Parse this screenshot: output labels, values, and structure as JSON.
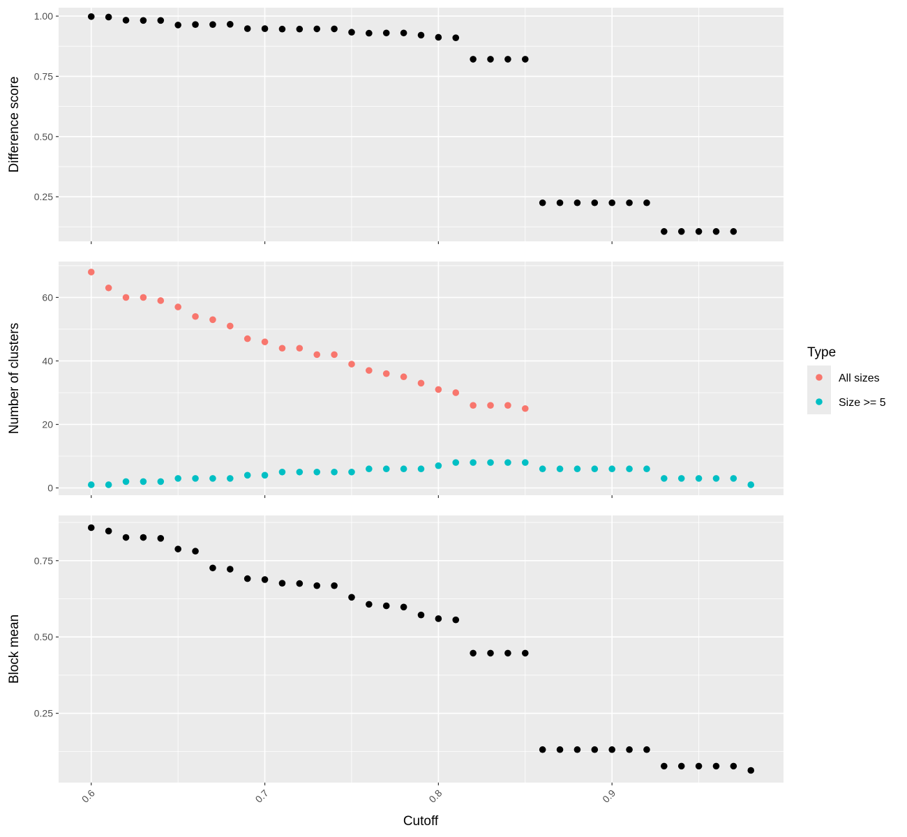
{
  "chart_data": [
    {
      "type": "scatter",
      "ylabel": "Difference score",
      "yticks": [
        0.25,
        0.5,
        0.75,
        1.0
      ],
      "ytick_labels": [
        "0.25",
        "0.50",
        "0.75",
        "1.00"
      ],
      "ylim": [
        0.065,
        1.035
      ],
      "series": [
        {
          "color": "#000000",
          "x": [
            0.6,
            0.61,
            0.62,
            0.63,
            0.64,
            0.65,
            0.66,
            0.67,
            0.68,
            0.69,
            0.7,
            0.71,
            0.72,
            0.73,
            0.74,
            0.75,
            0.76,
            0.77,
            0.78,
            0.79,
            0.8,
            0.81,
            0.82,
            0.83,
            0.84,
            0.85,
            0.86,
            0.87,
            0.88,
            0.89,
            0.9,
            0.91,
            0.92,
            0.93,
            0.94,
            0.95,
            0.96,
            0.97
          ],
          "y": [
            0.998,
            0.996,
            0.983,
            0.982,
            0.982,
            0.963,
            0.965,
            0.965,
            0.966,
            0.948,
            0.948,
            0.946,
            0.946,
            0.947,
            0.947,
            0.933,
            0.929,
            0.93,
            0.93,
            0.921,
            0.912,
            0.91,
            0.821,
            0.821,
            0.821,
            0.821,
            0.225,
            0.225,
            0.225,
            0.225,
            0.225,
            0.225,
            0.225,
            0.106,
            0.106,
            0.106,
            0.106,
            0.106
          ]
        }
      ]
    },
    {
      "type": "scatter",
      "ylabel": "Number of clusters",
      "yticks": [
        0,
        20,
        40,
        60
      ],
      "ytick_labels": [
        "0",
        "20",
        "40",
        "60"
      ],
      "ylim": [
        -2.3,
        71.3
      ],
      "legend": {
        "title": "Type",
        "position": "right"
      },
      "series": [
        {
          "name": "All sizes",
          "color": "#F8766D",
          "x": [
            0.6,
            0.61,
            0.62,
            0.63,
            0.64,
            0.65,
            0.66,
            0.67,
            0.68,
            0.69,
            0.7,
            0.71,
            0.72,
            0.73,
            0.74,
            0.75,
            0.76,
            0.77,
            0.78,
            0.79,
            0.8,
            0.81,
            0.82,
            0.83,
            0.84,
            0.85
          ],
          "y": [
            68,
            63,
            60,
            60,
            59,
            57,
            54,
            53,
            51,
            47,
            46,
            44,
            44,
            42,
            42,
            39,
            37,
            36,
            35,
            33,
            31,
            30,
            26,
            26,
            26,
            25
          ]
        },
        {
          "name": "Size >= 5",
          "color": "#00BFC4",
          "x": [
            0.6,
            0.61,
            0.62,
            0.63,
            0.64,
            0.65,
            0.66,
            0.67,
            0.68,
            0.69,
            0.7,
            0.71,
            0.72,
            0.73,
            0.74,
            0.75,
            0.76,
            0.77,
            0.78,
            0.79,
            0.8,
            0.81,
            0.82,
            0.83,
            0.84,
            0.85,
            0.86,
            0.87,
            0.88,
            0.89,
            0.9,
            0.91,
            0.92,
            0.93,
            0.94,
            0.95,
            0.96,
            0.97,
            0.98
          ],
          "y": [
            1,
            1,
            2,
            2,
            2,
            3,
            3,
            3,
            3,
            4,
            4,
            5,
            5,
            5,
            5,
            5,
            6,
            6,
            6,
            6,
            7,
            8,
            8,
            8,
            8,
            8,
            6,
            6,
            6,
            6,
            6,
            6,
            6,
            3,
            3,
            3,
            3,
            3,
            1
          ]
        }
      ]
    },
    {
      "type": "scatter",
      "ylabel": "Block mean",
      "xlabel": "Cutoff",
      "xticks": [
        0.6,
        0.7,
        0.8,
        0.9
      ],
      "xtick_labels": [
        "0.6",
        "0.7",
        "0.8",
        "0.9"
      ],
      "yticks": [
        0.25,
        0.5,
        0.75
      ],
      "ytick_labels": [
        "0.25",
        "0.50",
        "0.75"
      ],
      "ylim": [
        0.023,
        0.898
      ],
      "series": [
        {
          "color": "#000000",
          "x": [
            0.6,
            0.61,
            0.62,
            0.63,
            0.64,
            0.65,
            0.66,
            0.67,
            0.68,
            0.69,
            0.7,
            0.71,
            0.72,
            0.73,
            0.74,
            0.75,
            0.76,
            0.77,
            0.78,
            0.79,
            0.8,
            0.81,
            0.82,
            0.83,
            0.84,
            0.85,
            0.86,
            0.87,
            0.88,
            0.89,
            0.9,
            0.91,
            0.92,
            0.93,
            0.94,
            0.95,
            0.96,
            0.97,
            0.98
          ],
          "y": [
            0.858,
            0.847,
            0.826,
            0.826,
            0.823,
            0.788,
            0.781,
            0.726,
            0.722,
            0.691,
            0.688,
            0.676,
            0.675,
            0.668,
            0.668,
            0.63,
            0.607,
            0.602,
            0.598,
            0.572,
            0.56,
            0.556,
            0.447,
            0.447,
            0.447,
            0.447,
            0.131,
            0.131,
            0.131,
            0.131,
            0.131,
            0.131,
            0.131,
            0.077,
            0.077,
            0.077,
            0.077,
            0.077,
            0.063
          ]
        }
      ]
    }
  ],
  "x_shared": {
    "xlim": [
      0.5812,
      0.9988
    ]
  }
}
